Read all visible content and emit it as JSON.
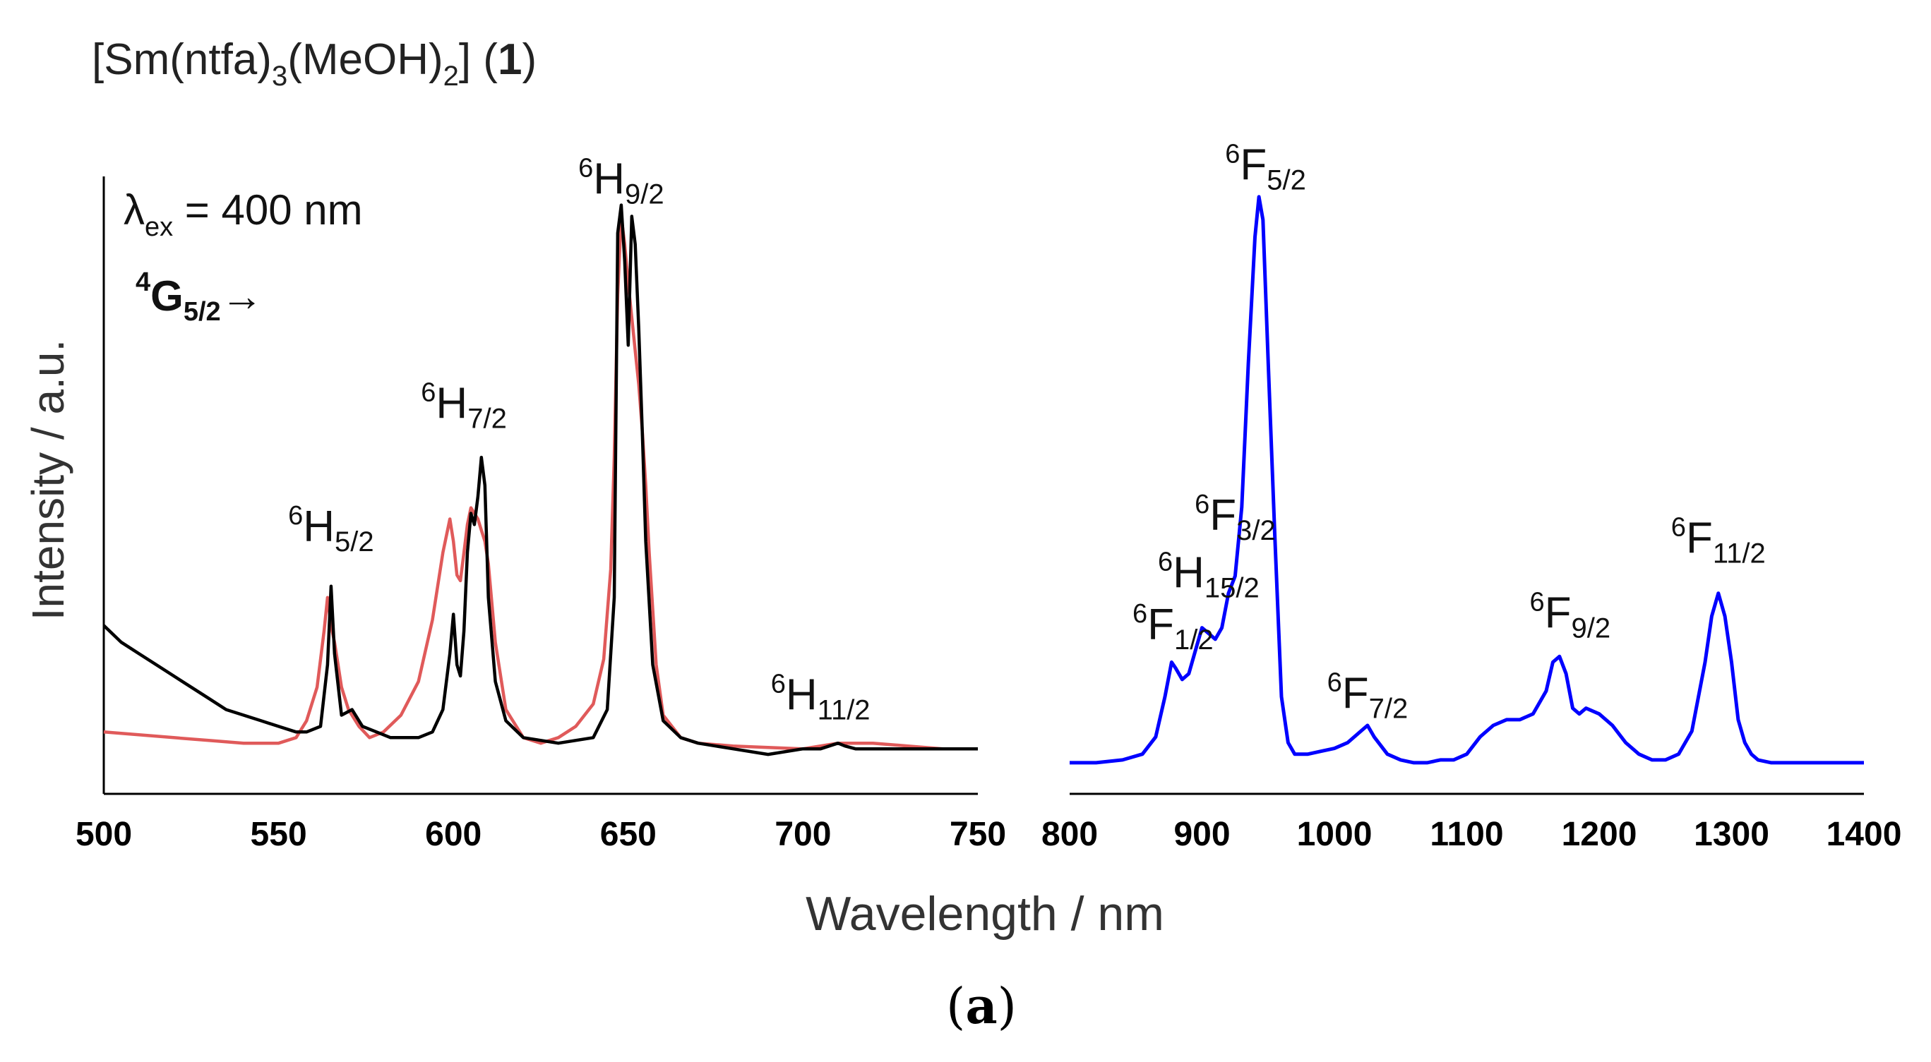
{
  "compound": {
    "prefix": "[Sm(ntfa)",
    "sub1": "3",
    "mid": "(MeOH)",
    "sub2": "2",
    "suffix": "]  (",
    "number": "1",
    "close": ")"
  },
  "excitation": {
    "symbol": "λ",
    "sub": "ex",
    "text": " = 400 nm"
  },
  "origin": {
    "sup": "4",
    "letter": "G",
    "sub": "5/2",
    "arrow": "→"
  },
  "panel_label": {
    "open": "(",
    "letter": "a",
    "close": ")"
  },
  "colors": {
    "left_black": "#000000",
    "left_red": "#e05a5a",
    "right_blue": "#0000ff"
  },
  "chart_data": [
    {
      "type": "line",
      "title": "[Sm(ntfa)3(MeOH)2] (1)",
      "xlabel": "Wavelength / nm",
      "ylabel": "Intensity / a.u.",
      "xlim": [
        500,
        750
      ],
      "ylim": [
        0,
        1.07
      ],
      "xticks": [
        "500",
        "550",
        "600",
        "650",
        "700",
        "750"
      ],
      "annotations": [
        {
          "sup": "6",
          "letter": "H",
          "sub": "5/2",
          "x": 565,
          "y": 0.4
        },
        {
          "sup": "6",
          "letter": "H",
          "sub": "7/2",
          "x": 603,
          "y": 0.62
        },
        {
          "sup": "6",
          "letter": "H",
          "sub": "9/2",
          "x": 648,
          "y": 1.02
        },
        {
          "sup": "6",
          "letter": "H",
          "sub": "11/2",
          "x": 705,
          "y": 0.1
        }
      ],
      "series": [
        {
          "name": "black",
          "color": "#000000",
          "x": [
            500,
            505,
            510,
            515,
            520,
            525,
            530,
            535,
            540,
            545,
            550,
            555,
            558,
            562,
            564,
            565,
            566,
            568,
            571,
            574,
            578,
            582,
            586,
            590,
            594,
            597,
            599,
            600,
            601,
            602,
            603,
            604,
            605,
            606,
            607,
            608,
            609,
            610,
            612,
            615,
            620,
            630,
            640,
            644,
            646,
            647,
            648,
            649,
            650,
            651,
            652,
            653,
            654,
            655,
            657,
            660,
            665,
            670,
            680,
            690,
            700,
            705,
            710,
            712,
            715,
            720,
            730,
            740,
            750
          ],
          "y": [
            0.25,
            0.22,
            0.2,
            0.18,
            0.16,
            0.14,
            0.12,
            0.1,
            0.09,
            0.08,
            0.07,
            0.06,
            0.06,
            0.07,
            0.18,
            0.32,
            0.2,
            0.09,
            0.1,
            0.07,
            0.06,
            0.05,
            0.05,
            0.05,
            0.06,
            0.1,
            0.2,
            0.27,
            0.18,
            0.16,
            0.24,
            0.38,
            0.45,
            0.43,
            0.48,
            0.55,
            0.5,
            0.3,
            0.15,
            0.08,
            0.05,
            0.04,
            0.05,
            0.1,
            0.3,
            0.95,
            1.0,
            0.9,
            0.75,
            0.98,
            0.93,
            0.78,
            0.6,
            0.4,
            0.18,
            0.08,
            0.05,
            0.04,
            0.03,
            0.02,
            0.03,
            0.03,
            0.04,
            0.035,
            0.03,
            0.03,
            0.03,
            0.03,
            0.03
          ]
        },
        {
          "name": "red",
          "color": "#e05a5a",
          "x": [
            500,
            510,
            520,
            530,
            540,
            550,
            555,
            558,
            561,
            563,
            564,
            565,
            566,
            567,
            568,
            570,
            573,
            576,
            580,
            585,
            590,
            594,
            597,
            599,
            600,
            601,
            602,
            603,
            604,
            605,
            606,
            607,
            608,
            609,
            610,
            612,
            615,
            620,
            625,
            630,
            635,
            640,
            643,
            645,
            646,
            647,
            648,
            649,
            650,
            651,
            652,
            653,
            654,
            655,
            656,
            658,
            660,
            665,
            670,
            680,
            700,
            710,
            720,
            730,
            740,
            750
          ],
          "y": [
            0.06,
            0.055,
            0.05,
            0.045,
            0.04,
            0.04,
            0.05,
            0.08,
            0.14,
            0.24,
            0.3,
            0.25,
            0.22,
            0.18,
            0.14,
            0.1,
            0.07,
            0.05,
            0.06,
            0.09,
            0.15,
            0.26,
            0.38,
            0.44,
            0.4,
            0.34,
            0.33,
            0.38,
            0.43,
            0.46,
            0.45,
            0.44,
            0.42,
            0.4,
            0.36,
            0.22,
            0.1,
            0.05,
            0.04,
            0.05,
            0.07,
            0.11,
            0.19,
            0.35,
            0.55,
            0.84,
            0.98,
            0.93,
            0.86,
            0.8,
            0.74,
            0.68,
            0.6,
            0.5,
            0.38,
            0.18,
            0.09,
            0.05,
            0.04,
            0.035,
            0.03,
            0.04,
            0.04,
            0.035,
            0.03,
            0.03
          ]
        }
      ]
    },
    {
      "type": "line",
      "xlabel": "Wavelength / nm",
      "xlim": [
        800,
        1400
      ],
      "ylim": [
        0,
        1.05
      ],
      "xticks": [
        "800",
        "900",
        "1000",
        "1100",
        "1200",
        "1300",
        "1400"
      ],
      "annotations": [
        {
          "sup": "6",
          "letter": "F",
          "sub": "1/2",
          "x": 878,
          "y": 0.22
        },
        {
          "sup": "6",
          "letter": "H",
          "sub": "15/2",
          "x": 905,
          "y": 0.31
        },
        {
          "sup": "6",
          "letter": "F",
          "sub": "3/2",
          "x": 925,
          "y": 0.41
        },
        {
          "sup": "6",
          "letter": "F",
          "sub": "5/2",
          "x": 948,
          "y": 1.02
        },
        {
          "sup": "6",
          "letter": "F",
          "sub": "7/2",
          "x": 1025,
          "y": 0.1
        },
        {
          "sup": "6",
          "letter": "F",
          "sub": "9/2",
          "x": 1178,
          "y": 0.24
        },
        {
          "sup": "6",
          "letter": "F",
          "sub": "11/2",
          "x": 1290,
          "y": 0.37
        }
      ],
      "series": [
        {
          "name": "blue",
          "color": "#0000ff",
          "x": [
            800,
            820,
            840,
            855,
            865,
            872,
            877,
            880,
            885,
            890,
            895,
            900,
            905,
            910,
            915,
            920,
            925,
            930,
            935,
            940,
            943,
            946,
            950,
            955,
            960,
            965,
            970,
            980,
            990,
            1000,
            1010,
            1020,
            1025,
            1030,
            1040,
            1050,
            1060,
            1070,
            1080,
            1090,
            1100,
            1110,
            1120,
            1130,
            1140,
            1150,
            1160,
            1165,
            1170,
            1175,
            1180,
            1185,
            1190,
            1200,
            1210,
            1220,
            1230,
            1240,
            1250,
            1260,
            1270,
            1280,
            1285,
            1290,
            1295,
            1300,
            1305,
            1310,
            1315,
            1320,
            1330,
            1340,
            1350,
            1360,
            1370,
            1380,
            1390,
            1400
          ],
          "y": [
            0.005,
            0.005,
            0.01,
            0.02,
            0.05,
            0.12,
            0.18,
            0.17,
            0.15,
            0.16,
            0.2,
            0.24,
            0.23,
            0.22,
            0.24,
            0.3,
            0.33,
            0.45,
            0.7,
            0.92,
            0.99,
            0.95,
            0.7,
            0.4,
            0.12,
            0.04,
            0.02,
            0.02,
            0.025,
            0.03,
            0.04,
            0.06,
            0.07,
            0.05,
            0.02,
            0.01,
            0.005,
            0.005,
            0.01,
            0.01,
            0.02,
            0.05,
            0.07,
            0.08,
            0.08,
            0.09,
            0.13,
            0.18,
            0.19,
            0.16,
            0.1,
            0.09,
            0.1,
            0.09,
            0.07,
            0.04,
            0.02,
            0.01,
            0.01,
            0.02,
            0.06,
            0.18,
            0.26,
            0.3,
            0.26,
            0.18,
            0.08,
            0.04,
            0.02,
            0.01,
            0.005,
            0.005,
            0.005,
            0.005,
            0.005,
            0.005,
            0.005,
            0.005
          ]
        }
      ]
    }
  ]
}
